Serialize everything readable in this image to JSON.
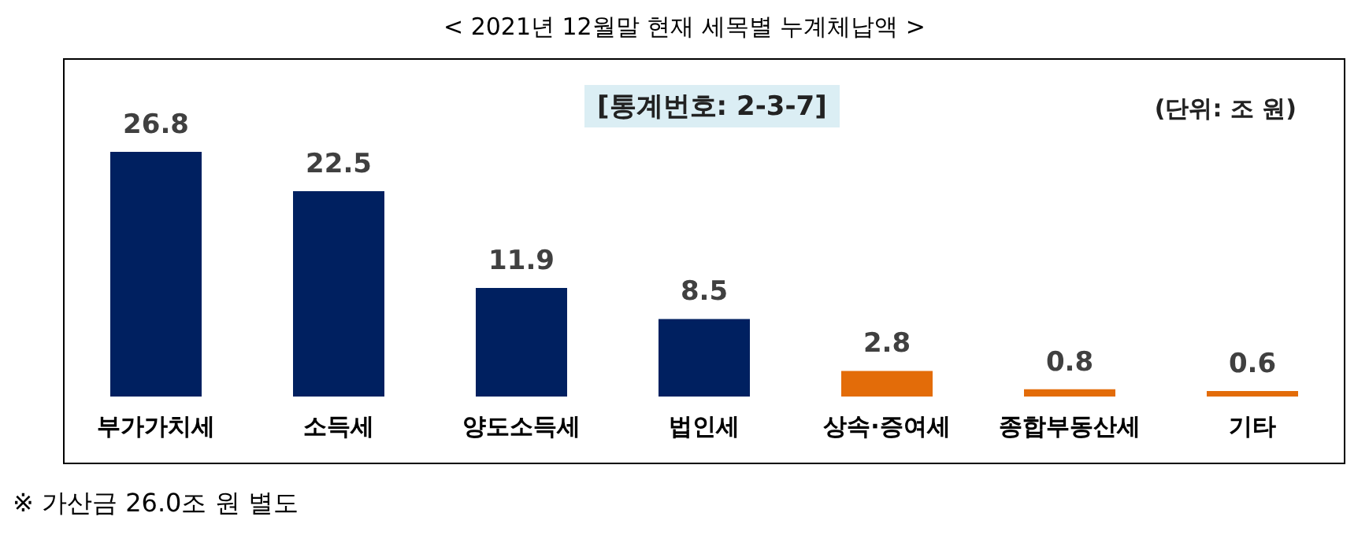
{
  "chart_data": {
    "type": "bar",
    "title": "< 2021년 12월말 현재 세목별 누계체납액 >",
    "categories": [
      "부가가치세",
      "소득세",
      "양도소득세",
      "법인세",
      "상속·증여세",
      "종합부동산세",
      "기타"
    ],
    "values": [
      26.8,
      22.5,
      11.9,
      8.5,
      2.8,
      0.8,
      0.6
    ],
    "colors": [
      "#002060",
      "#002060",
      "#002060",
      "#002060",
      "#e36c09",
      "#e36c09",
      "#e36c09"
    ],
    "data_labels": true,
    "annotations": [
      "[통계번호: 2-3-7]",
      "(단위: 조 원)",
      "※ 가산금 26.0조 원 별도"
    ]
  }
}
